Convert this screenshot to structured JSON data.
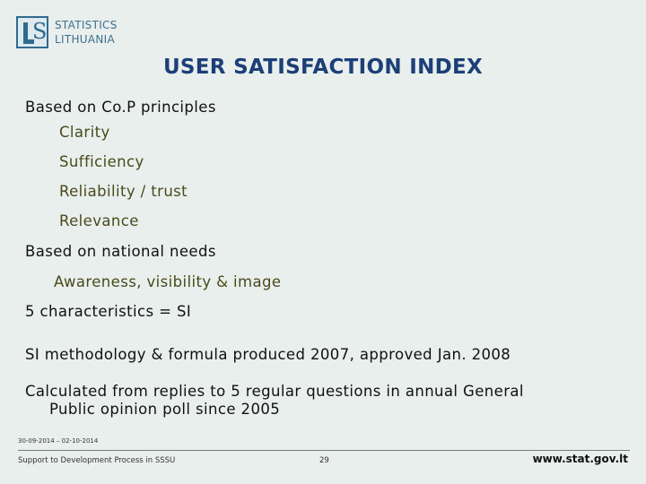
{
  "logo": {
    "line1": "STATISTICS",
    "line2": "LITHUANIA"
  },
  "title": "USER SATISFACTION INDEX",
  "content": {
    "cop_heading": "Based on Co.P principles",
    "cop_items": [
      "Clarity",
      "Sufficiency",
      "Reliability / trust",
      "Relevance"
    ],
    "national_heading": "Based on national needs",
    "national_items": [
      "Awareness, visibility & image"
    ],
    "characteristics": "5 characteristics = SI",
    "methodology": "SI methodology & formula produced 2007, approved Jan. 2008",
    "calculated_line1": "Calculated from replies to 5 regular questions in annual General",
    "calculated_line2": "Public opinion poll since 2005"
  },
  "footer": {
    "date": "30-09-2014 – 02-10-2014",
    "left": "Support to Development Process in SSSU",
    "page": "29",
    "url": "www.stat.gov.lt"
  }
}
